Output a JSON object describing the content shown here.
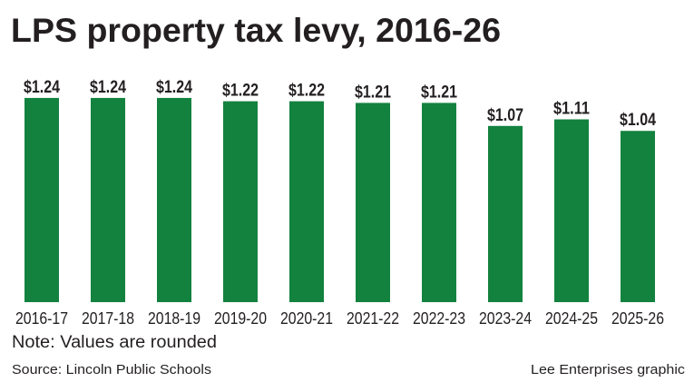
{
  "chart_data": {
    "type": "bar",
    "title": "LPS property tax levy, 2016-26",
    "categories": [
      "2016-17",
      "2017-18",
      "2018-19",
      "2019-20",
      "2020-21",
      "2021-22",
      "2022-23",
      "2023-24",
      "2024-25",
      "2025-26"
    ],
    "values": [
      1.24,
      1.24,
      1.24,
      1.22,
      1.22,
      1.21,
      1.21,
      1.07,
      1.11,
      1.04
    ],
    "data_labels": [
      "$1.24",
      "$1.24",
      "$1.24",
      "$1.22",
      "$1.22",
      "$1.21",
      "$1.21",
      "$1.07",
      "$1.11",
      "$1.04"
    ],
    "xlabel": "",
    "ylabel": "",
    "ylim": [
      0,
      1.3
    ],
    "grid": false,
    "bar_color": "#13823f"
  },
  "note": "Note: Values are rounded",
  "source": "Source: Lincoln Public Schools",
  "credit": "Lee Enterprises graphic"
}
